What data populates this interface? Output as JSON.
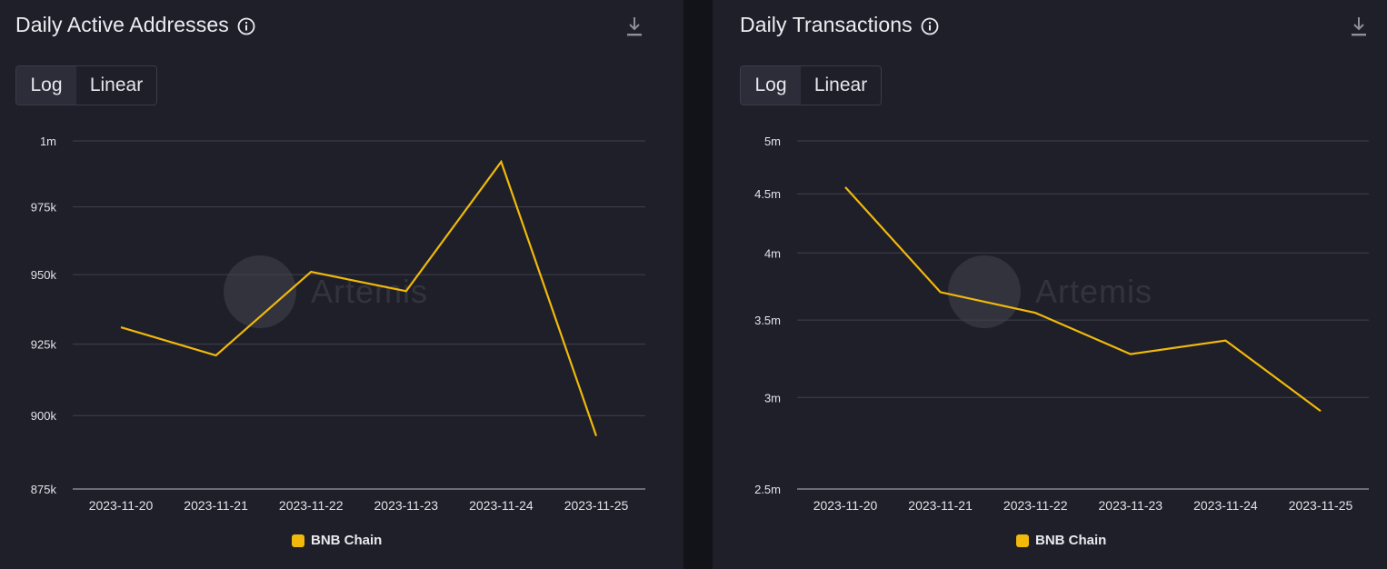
{
  "colors": {
    "series": "#f0b90b",
    "grid": "#41414e",
    "axis": "#6c6c7a",
    "tick_text": "#e2e2e8"
  },
  "watermark": {
    "text": "Artemis"
  },
  "toggle": {
    "log_label": "Log",
    "linear_label": "Linear",
    "active": "Log"
  },
  "icons": {
    "info": "info-circle-icon",
    "download": "download-icon"
  },
  "charts": [
    {
      "title": "Daily Active Addresses"
    },
    {
      "title": "Daily Transactions"
    }
  ],
  "chart_data": [
    {
      "type": "line",
      "title": "Daily Active Addresses",
      "scale": "log",
      "x": [
        "2023-11-20",
        "2023-11-21",
        "2023-11-22",
        "2023-11-23",
        "2023-11-24",
        "2023-11-25"
      ],
      "series": [
        {
          "name": "BNB Chain",
          "values": [
            931000,
            921000,
            951000,
            944000,
            992000,
            893000
          ]
        }
      ],
      "y_ticks": [
        {
          "value": 875000,
          "label": "875k"
        },
        {
          "value": 900000,
          "label": "900k"
        },
        {
          "value": 925000,
          "label": "925k"
        },
        {
          "value": 950000,
          "label": "950k"
        },
        {
          "value": 975000,
          "label": "975k"
        },
        {
          "value": 1000000,
          "label": "1m"
        }
      ],
      "ylim": [
        875000,
        1000000
      ],
      "grid": true,
      "legend": "bottom-center"
    },
    {
      "type": "line",
      "title": "Daily Transactions",
      "scale": "log",
      "x": [
        "2023-11-20",
        "2023-11-21",
        "2023-11-22",
        "2023-11-23",
        "2023-11-24",
        "2023-11-25"
      ],
      "series": [
        {
          "name": "BNB Chain",
          "values": [
            4560000,
            3700000,
            3550000,
            3270000,
            3360000,
            2920000
          ]
        }
      ],
      "y_ticks": [
        {
          "value": 2500000,
          "label": "2.5m"
        },
        {
          "value": 3000000,
          "label": "3m"
        },
        {
          "value": 3500000,
          "label": "3.5m"
        },
        {
          "value": 4000000,
          "label": "4m"
        },
        {
          "value": 4500000,
          "label": "4.5m"
        },
        {
          "value": 5000000,
          "label": "5m"
        }
      ],
      "ylim": [
        2500000,
        5000000
      ],
      "grid": true,
      "legend": "bottom-center"
    }
  ]
}
